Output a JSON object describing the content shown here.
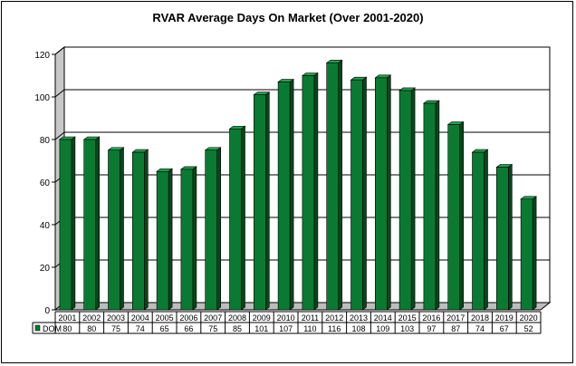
{
  "chart_data": {
    "type": "bar",
    "title": "RVAR Average Days On Market (Over 2001-2020)",
    "xlabel": "",
    "ylabel": "",
    "categories": [
      "2001",
      "2002",
      "2003",
      "2004",
      "2005",
      "2006",
      "2007",
      "2008",
      "2009",
      "2010",
      "2011",
      "2012",
      "2013",
      "2014",
      "2015",
      "2016",
      "2017",
      "2018",
      "2019",
      "2020"
    ],
    "series": [
      {
        "name": "DOM",
        "values": [
          80,
          80,
          75,
          74,
          65,
          66,
          75,
          85,
          101,
          107,
          110,
          116,
          108,
          109,
          103,
          97,
          87,
          74,
          67,
          52
        ]
      }
    ],
    "ylim": [
      0,
      120
    ],
    "yticks": [
      0,
      20,
      40,
      60,
      80,
      100,
      120
    ],
    "grid": true,
    "data_table": true,
    "bar_color": "#0a7a33",
    "bar_color_dark": "#05461d",
    "bar_color_light": "#23a04f",
    "gridline_color": "#000000"
  }
}
